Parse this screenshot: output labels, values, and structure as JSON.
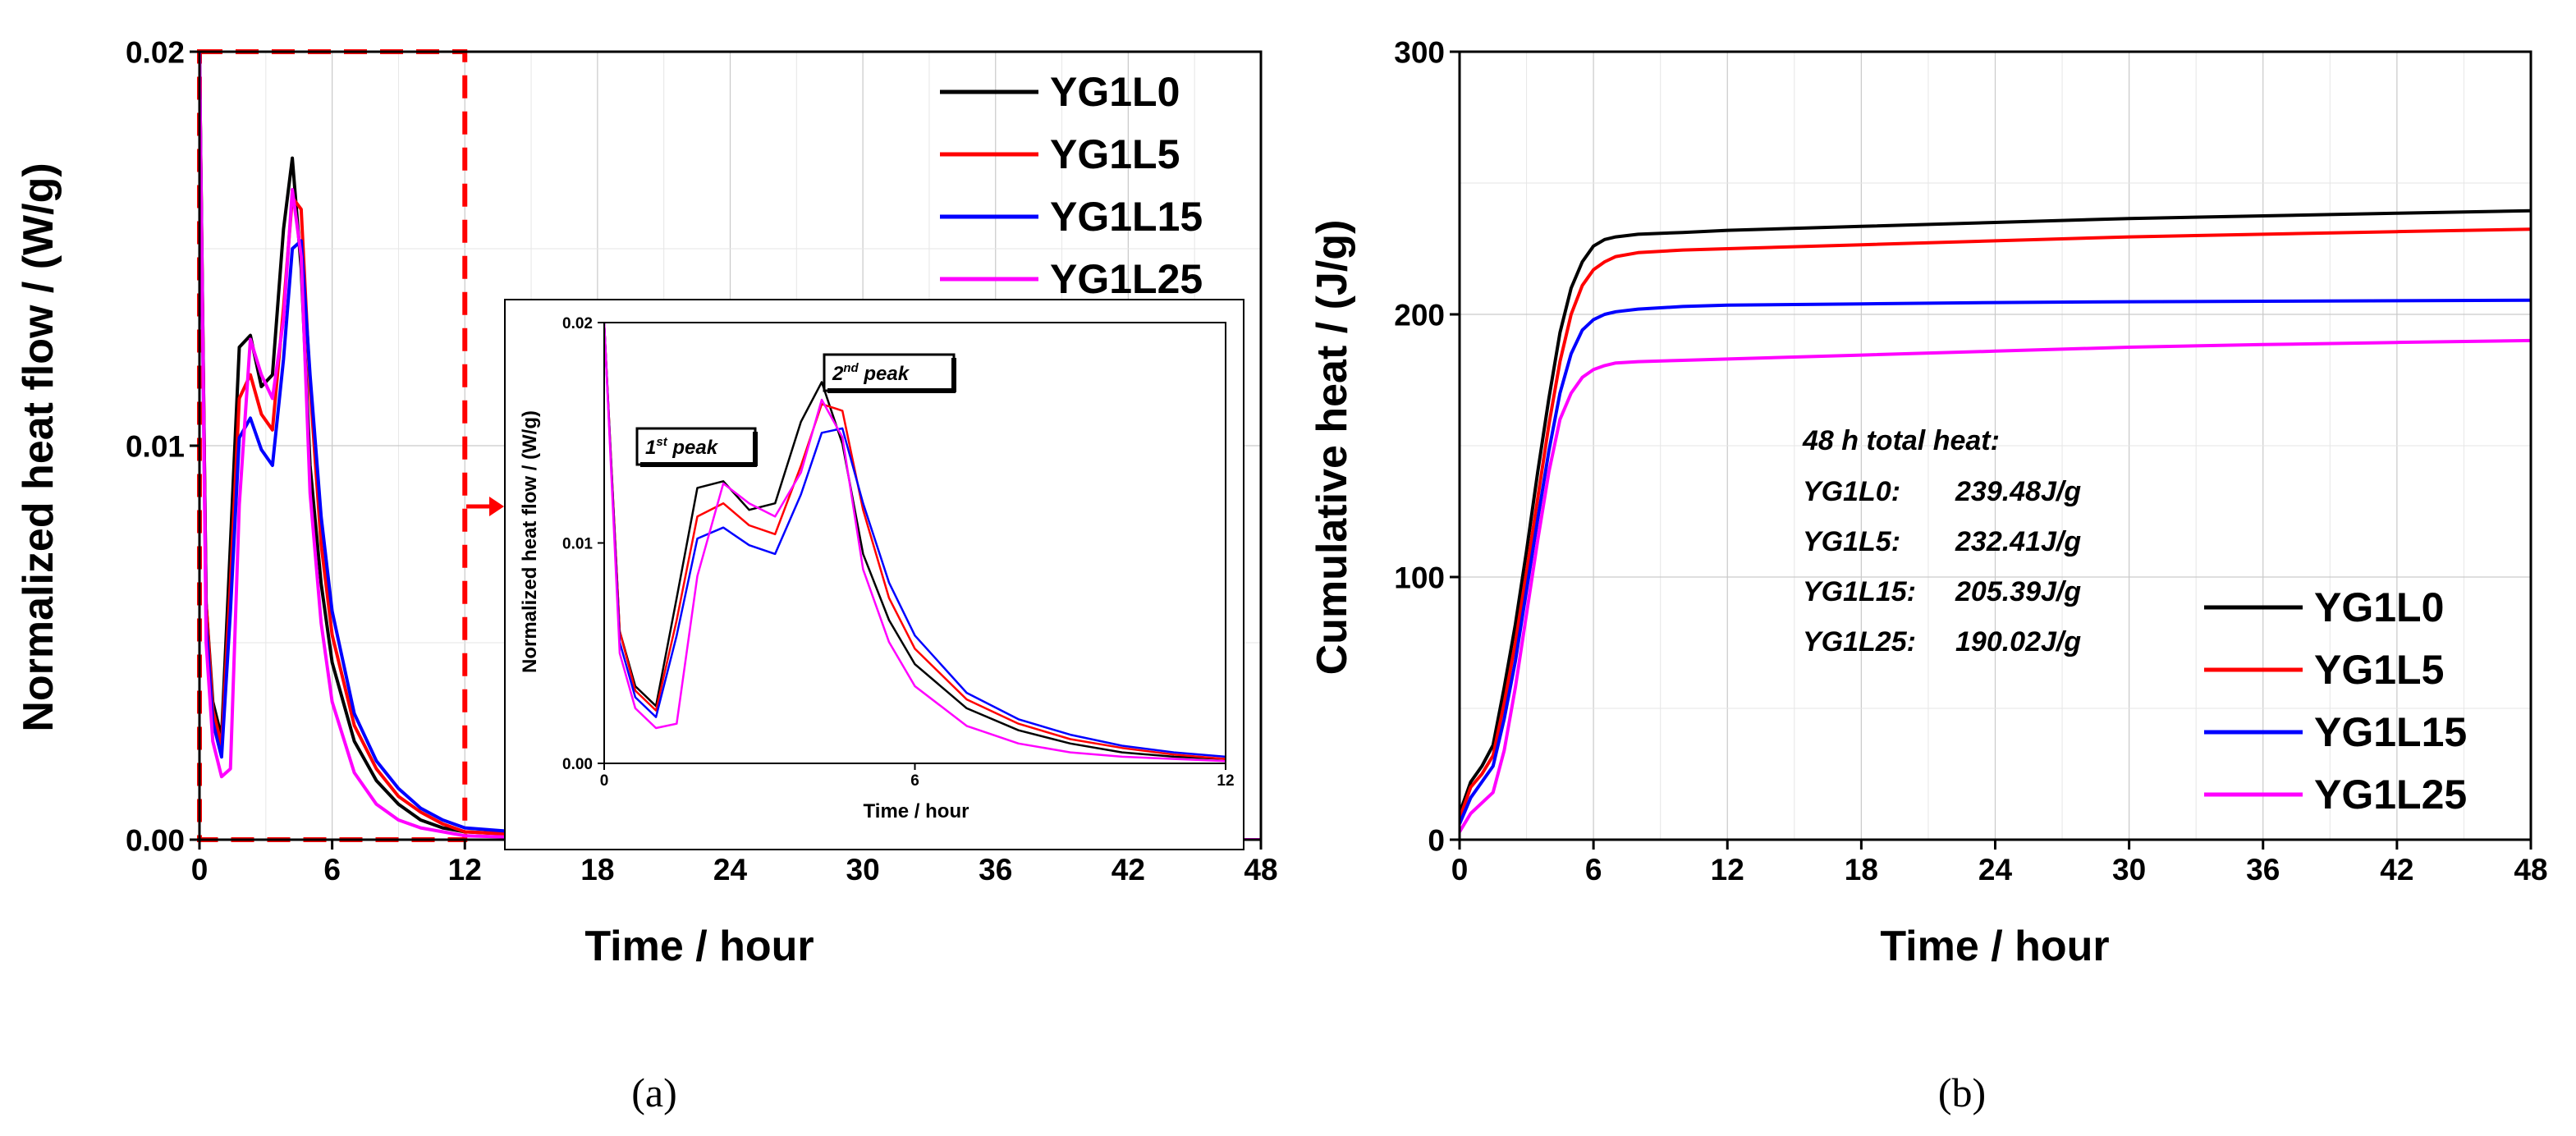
{
  "chart_data": [
    {
      "panel": "a",
      "caption": "(a)",
      "type": "line",
      "xlabel": "Time / hour",
      "ylabel": "Normalized heat flow / (W/g)",
      "xlim": [
        0,
        48
      ],
      "ylim": [
        0,
        0.02
      ],
      "xticks": [
        "0",
        "6",
        "12",
        "18",
        "24",
        "30",
        "36",
        "42",
        "48"
      ],
      "yticks": [
        "0.00",
        "0.01",
        "0.02"
      ],
      "grid": true,
      "legend_position": "top-right",
      "highlight_box": {
        "x_range": [
          0,
          12
        ],
        "y_range": [
          0,
          0.02
        ],
        "style": "red-dashed"
      },
      "series": [
        {
          "name": "YG1L0",
          "color": "#000000",
          "x": [
            0,
            0.3,
            0.6,
            1.0,
            1.4,
            1.8,
            2.3,
            2.8,
            3.3,
            3.8,
            4.2,
            4.6,
            5.0,
            5.5,
            6.0,
            7.0,
            8.0,
            9.0,
            10.0,
            11.0,
            12.0,
            18.0,
            24.0,
            30.0,
            36.0,
            42.0,
            48.0
          ],
          "y": [
            0.02,
            0.006,
            0.0035,
            0.0026,
            0.0075,
            0.0125,
            0.0128,
            0.0115,
            0.0118,
            0.0155,
            0.0173,
            0.0145,
            0.0095,
            0.0065,
            0.0045,
            0.0025,
            0.0015,
            0.0009,
            0.0005,
            0.0003,
            0.0002,
            3e-05,
            0.0,
            0.0,
            0.0,
            0.0,
            0.0
          ]
        },
        {
          "name": "YG1L5",
          "color": "#ff0000",
          "x": [
            0,
            0.3,
            0.6,
            1.0,
            1.4,
            1.8,
            2.3,
            2.8,
            3.3,
            3.8,
            4.2,
            4.6,
            5.0,
            5.5,
            6.0,
            7.0,
            8.0,
            9.0,
            10.0,
            11.0,
            12.0,
            18.0,
            24.0,
            30.0,
            36.0,
            42.0,
            48.0
          ],
          "y": [
            0.02,
            0.006,
            0.0033,
            0.0024,
            0.0065,
            0.0112,
            0.0118,
            0.0108,
            0.0104,
            0.0135,
            0.0163,
            0.016,
            0.0115,
            0.0075,
            0.0052,
            0.0029,
            0.0018,
            0.0011,
            0.0007,
            0.0004,
            0.0002,
            3e-05,
            0.0,
            0.0,
            0.0,
            0.0,
            0.0
          ]
        },
        {
          "name": "YG1L15",
          "color": "#0000ff",
          "x": [
            0,
            0.3,
            0.6,
            1.0,
            1.4,
            1.8,
            2.3,
            2.8,
            3.3,
            3.8,
            4.2,
            4.6,
            5.0,
            5.5,
            6.0,
            7.0,
            8.0,
            9.0,
            10.0,
            11.0,
            12.0,
            18.0,
            24.0,
            30.0,
            36.0,
            42.0,
            48.0
          ],
          "y": [
            0.02,
            0.0055,
            0.003,
            0.0021,
            0.0058,
            0.0102,
            0.0107,
            0.0099,
            0.0095,
            0.0122,
            0.015,
            0.0152,
            0.0118,
            0.0082,
            0.0058,
            0.0032,
            0.002,
            0.0013,
            0.0008,
            0.0005,
            0.0003,
            4e-05,
            0.0,
            0.0,
            0.0,
            0.0,
            0.0
          ]
        },
        {
          "name": "YG1L25",
          "color": "#ff00ff",
          "x": [
            0,
            0.3,
            0.6,
            1.0,
            1.4,
            1.8,
            2.3,
            2.8,
            3.3,
            3.8,
            4.2,
            4.6,
            5.0,
            5.5,
            6.0,
            7.0,
            8.0,
            9.0,
            10.0,
            11.0,
            12.0,
            18.0,
            24.0,
            30.0,
            36.0,
            42.0,
            48.0
          ],
          "y": [
            0.02,
            0.005,
            0.0025,
            0.0016,
            0.0018,
            0.0085,
            0.0127,
            0.0118,
            0.0112,
            0.0132,
            0.0165,
            0.0148,
            0.0088,
            0.0055,
            0.0035,
            0.0017,
            0.0009,
            0.0005,
            0.0003,
            0.0002,
            0.0001,
            0.0,
            0.0,
            0.0,
            0.0,
            0.0,
            0.0
          ]
        }
      ]
    },
    {
      "panel": "a-inset",
      "type": "line",
      "xlabel": "Time / hour",
      "ylabel": "Normalized heat flow / (W/g)",
      "xlim": [
        0,
        12
      ],
      "ylim": [
        0,
        0.02
      ],
      "xticks": [
        "0",
        "6",
        "12"
      ],
      "yticks": [
        "0.00",
        "0.01",
        "0.02"
      ],
      "annotations": [
        {
          "text": "1",
          "sup": "st",
          "rest": " peak"
        },
        {
          "text": "2",
          "sup": "nd",
          "rest": " peak"
        }
      ]
    },
    {
      "panel": "b",
      "caption": "(b)",
      "type": "line",
      "xlabel": "Time / hour",
      "ylabel": "Cumulative heat / (J/g)",
      "xlim": [
        0,
        48
      ],
      "ylim": [
        0,
        300
      ],
      "xticks": [
        "0",
        "6",
        "12",
        "18",
        "24",
        "30",
        "36",
        "42",
        "48"
      ],
      "yticks": [
        "0",
        "100",
        "200",
        "300"
      ],
      "grid": true,
      "legend_position": "bottom-right",
      "note_title": "48 h total heat:",
      "note_lines": [
        {
          "name": "YG1L0:",
          "value": "239.48J/g"
        },
        {
          "name": "YG1L5:",
          "value": "232.41J/g"
        },
        {
          "name": "YG1L15:",
          "value": "205.39J/g"
        },
        {
          "name": "YG1L25:",
          "value": "190.02J/g"
        }
      ],
      "series": [
        {
          "name": "YG1L0",
          "color": "#000000",
          "x": [
            0,
            0.5,
            1.0,
            1.5,
            2.0,
            2.5,
            3.0,
            3.5,
            4.0,
            4.5,
            5.0,
            5.5,
            6.0,
            6.5,
            7.0,
            8.0,
            10.0,
            12.0,
            18.0,
            24.0,
            30.0,
            36.0,
            42.0,
            48.0
          ],
          "y": [
            10,
            22,
            28,
            36,
            58,
            82,
            110,
            140,
            168,
            193,
            210,
            220,
            226,
            228.5,
            229.5,
            230.5,
            231.2,
            232,
            233.5,
            235,
            236.5,
            237.5,
            238.5,
            239.48
          ]
        },
        {
          "name": "YG1L5",
          "color": "#ff0000",
          "x": [
            0,
            0.5,
            1.0,
            1.5,
            2.0,
            2.5,
            3.0,
            3.5,
            4.0,
            4.5,
            5.0,
            5.5,
            6.0,
            6.5,
            7.0,
            8.0,
            10.0,
            12.0,
            18.0,
            24.0,
            30.0,
            36.0,
            42.0,
            48.0
          ],
          "y": [
            8,
            20,
            25,
            32,
            52,
            75,
            102,
            130,
            158,
            182,
            200,
            211,
            217,
            220,
            222,
            223.5,
            224.5,
            225,
            226.5,
            228,
            229.5,
            230.5,
            231.5,
            232.41
          ]
        },
        {
          "name": "YG1L15",
          "color": "#0000ff",
          "x": [
            0,
            0.5,
            1.0,
            1.5,
            2.0,
            2.5,
            3.0,
            3.5,
            4.0,
            4.5,
            5.0,
            5.5,
            6.0,
            6.5,
            7.0,
            8.0,
            10.0,
            12.0,
            18.0,
            24.0,
            30.0,
            36.0,
            42.0,
            48.0
          ],
          "y": [
            6,
            16,
            22,
            28,
            46,
            68,
            95,
            122,
            148,
            170,
            185,
            194,
            198,
            200,
            201,
            202,
            203,
            203.5,
            204,
            204.5,
            204.8,
            205,
            205.2,
            205.39
          ]
        },
        {
          "name": "YG1L25",
          "color": "#ff00ff",
          "x": [
            0,
            0.5,
            1.0,
            1.5,
            2.0,
            2.5,
            3.0,
            3.5,
            4.0,
            4.5,
            5.0,
            5.5,
            6.0,
            6.5,
            7.0,
            8.0,
            10.0,
            12.0,
            18.0,
            24.0,
            30.0,
            36.0,
            42.0,
            48.0
          ],
          "y": [
            3,
            10,
            14,
            18,
            34,
            58,
            86,
            114,
            140,
            160,
            170,
            176,
            179,
            180.5,
            181.5,
            182,
            182.5,
            183,
            184.5,
            186,
            187.5,
            188.5,
            189.3,
            190.02
          ]
        }
      ]
    }
  ]
}
